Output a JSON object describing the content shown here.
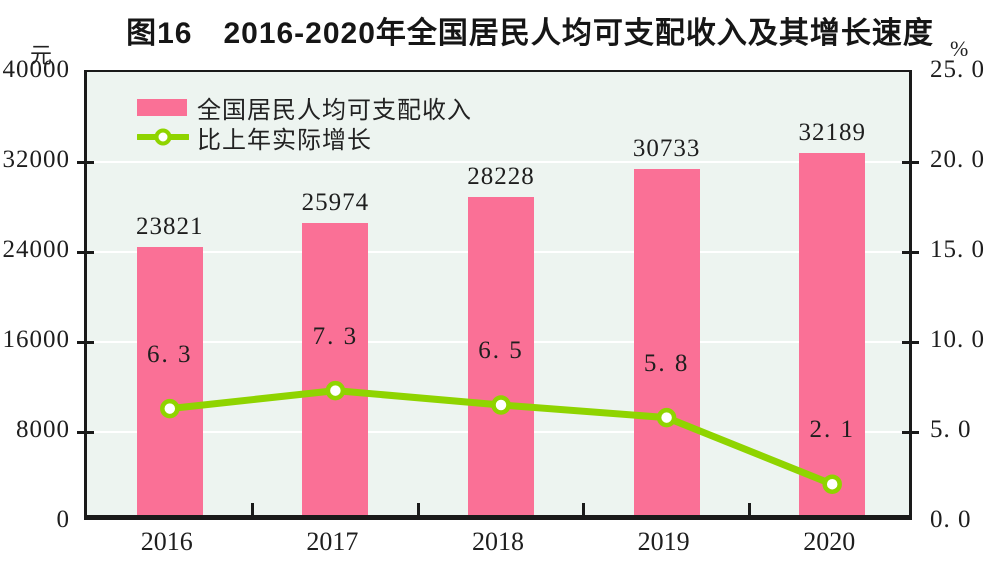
{
  "title": "图16　2016-2020年全国居民人均可支配收入及其增长速度",
  "legend": [
    {
      "label": "全国居民人均可支配收入",
      "type": "bar",
      "color": "#FA7096"
    },
    {
      "label": "比上年实际增长",
      "type": "line",
      "color": "#8FD400"
    }
  ],
  "chart_data": {
    "type": "bar+line",
    "categories": [
      "2016",
      "2017",
      "2018",
      "2019",
      "2020"
    ],
    "series": [
      {
        "name": "全国居民人均可支配收入",
        "type": "bar",
        "axis": "left",
        "values": [
          23821,
          25974,
          28228,
          30733,
          32189
        ],
        "labels": [
          "23821",
          "25974",
          "28228",
          "30733",
          "32189"
        ]
      },
      {
        "name": "比上年实际增长",
        "type": "line",
        "axis": "right",
        "values": [
          6.3,
          7.3,
          6.5,
          5.8,
          2.1
        ],
        "labels": [
          "6. 3",
          "7. 3",
          "6. 5",
          "5. 8",
          "2. 1"
        ]
      }
    ],
    "left_axis": {
      "unit": "元",
      "min": 0,
      "max": 40000,
      "ticks": [
        0,
        8000,
        16000,
        24000,
        32000,
        40000
      ],
      "tick_labels": [
        "0",
        "8000",
        "16000",
        "24000",
        "32000",
        "40000"
      ]
    },
    "right_axis": {
      "unit": "%",
      "min": 0,
      "max": 25,
      "ticks": [
        0,
        5,
        10,
        15,
        20,
        25
      ],
      "tick_labels": [
        "0. 0",
        "5. 0",
        "10. 0",
        "15. 0",
        "20. 0",
        "25. 0"
      ]
    },
    "grid": true,
    "legend_position": "top-left-inside"
  },
  "colors": {
    "bar": "#FA7096",
    "line": "#8FD400",
    "plot_bg": "#EDF4F0",
    "grid": "#FFFFFF",
    "axis": "#1A1A1A",
    "text": "#1C1C1C"
  }
}
